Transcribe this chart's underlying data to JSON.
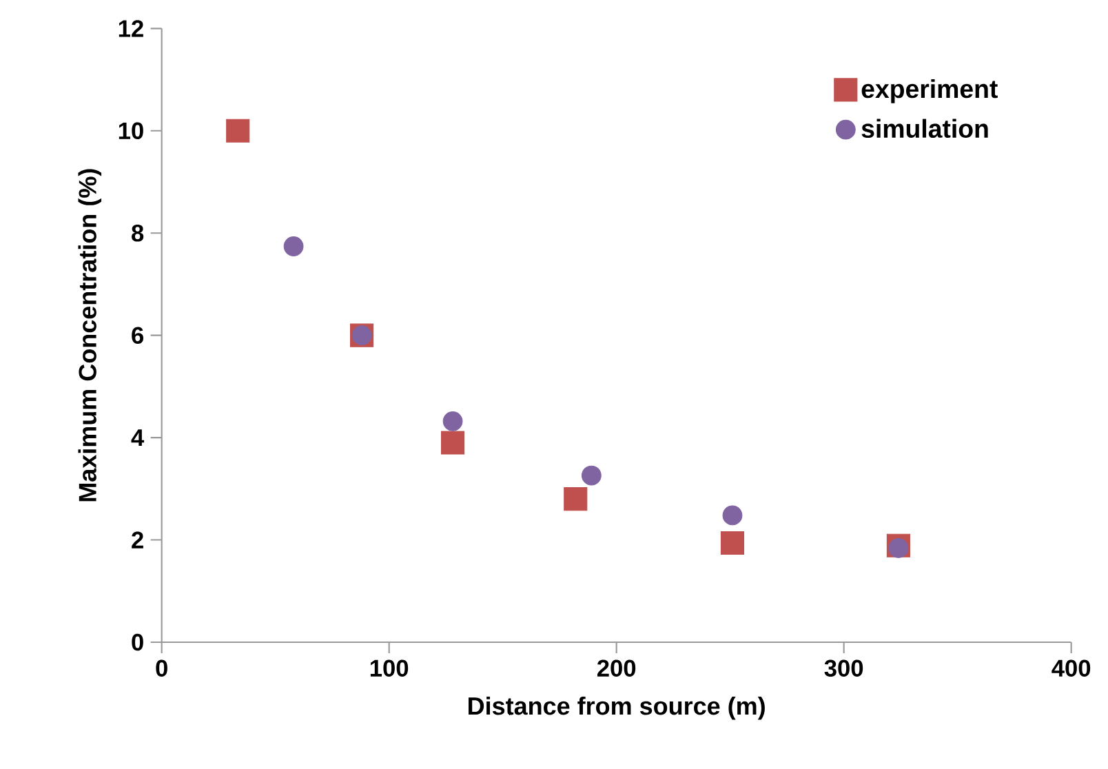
{
  "chart_data": {
    "type": "scatter",
    "xlabel": "Distance from source (m)",
    "ylabel": "Maximum Concentration (%)",
    "series": [
      {
        "name": "experiment",
        "color": "#c0504d",
        "marker": "square",
        "x": [
          33.5,
          88,
          128,
          182,
          251,
          324
        ],
        "values": [
          10.0,
          6.0,
          3.9,
          2.8,
          1.94,
          1.89
        ]
      },
      {
        "name": "simulation",
        "color": "#8064a2",
        "marker": "circle",
        "x": [
          58,
          88,
          128,
          189,
          251,
          324
        ],
        "values": [
          7.74,
          6.0,
          4.32,
          3.26,
          2.48,
          1.84
        ]
      }
    ],
    "xlim": [
      0,
      400
    ],
    "xticks": [
      0,
      100,
      200,
      300,
      400
    ],
    "ylim": [
      0,
      12
    ],
    "yticks": [
      0,
      2,
      4,
      6,
      8,
      10,
      12
    ],
    "grid": false,
    "legend": "top right"
  }
}
